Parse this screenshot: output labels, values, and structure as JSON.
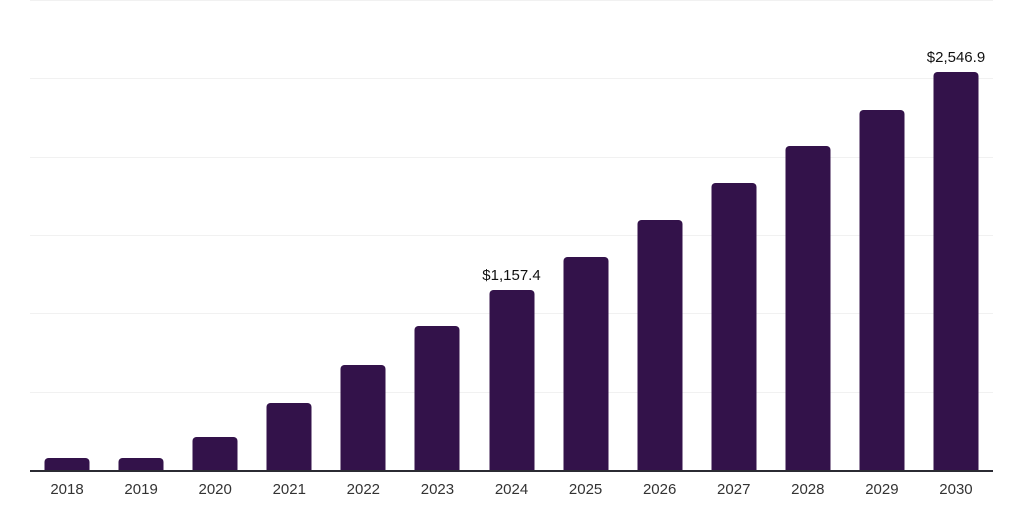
{
  "chart_data": {
    "type": "bar",
    "title": "",
    "xlabel": "",
    "ylabel": "",
    "categories": [
      "2018",
      "2019",
      "2020",
      "2021",
      "2022",
      "2023",
      "2024",
      "2025",
      "2026",
      "2027",
      "2028",
      "2029",
      "2030"
    ],
    "values": [
      86,
      83,
      219,
      436,
      679,
      925,
      1157.4,
      1368,
      1604,
      1838,
      2073,
      2306,
      2546.9
    ],
    "value_labels": [
      "",
      "",
      "",
      "",
      "",
      "",
      "$1,157.4",
      "",
      "",
      "",
      "",
      "",
      "$2,546.9"
    ],
    "ylim": [
      0,
      3000
    ],
    "grid_step": 500,
    "grid": true,
    "legend": false,
    "colors": {
      "bar": "#33124A",
      "axis_line": "#2B2B33",
      "gridline": "#F1F1F1",
      "year_label": "#333333",
      "value_label": "#111111",
      "background": "#FFFFFF"
    }
  }
}
